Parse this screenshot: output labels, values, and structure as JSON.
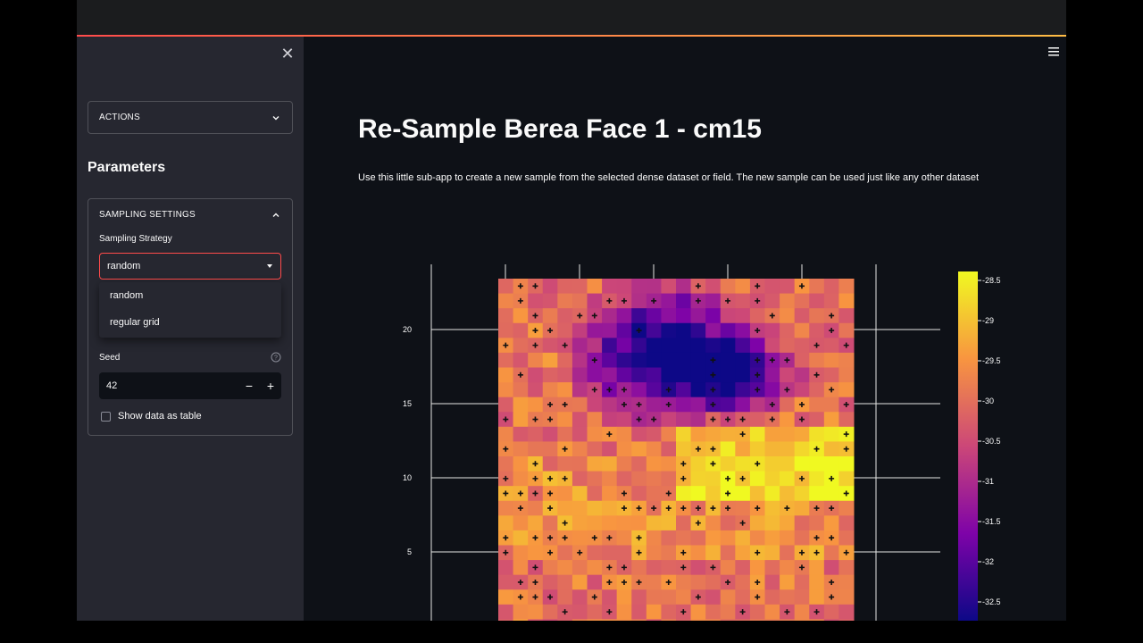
{
  "sidebar": {
    "actions_label": "ACTIONS",
    "params_title": "Parameters",
    "sampling_label": "SAMPLING SETTINGS",
    "strategy_label": "Sampling Strategy",
    "strategy_value": "random",
    "strategy_options": [
      "random",
      "regular grid"
    ],
    "seed_label": "Seed",
    "seed_value": "42",
    "table_label": "Show data as table"
  },
  "main": {
    "title": "Re-Sample Berea Face 1 - cm15",
    "intro": "Use this little sub-app to create a new sample from the selected dense dataset or field. The new sample can be used just like any other dataset"
  },
  "chart_data": {
    "type": "heatmap",
    "yticks": [
      5,
      10,
      15,
      20
    ],
    "colorbar_ticks": [
      "-28.5",
      "-29",
      "-29.5",
      "-30",
      "-30.5",
      "-31",
      "-31.5",
      "-32",
      "-32.5"
    ],
    "colorscale": "plasma",
    "markers": "plus",
    "crange": [
      -32.8,
      -28.3
    ]
  }
}
